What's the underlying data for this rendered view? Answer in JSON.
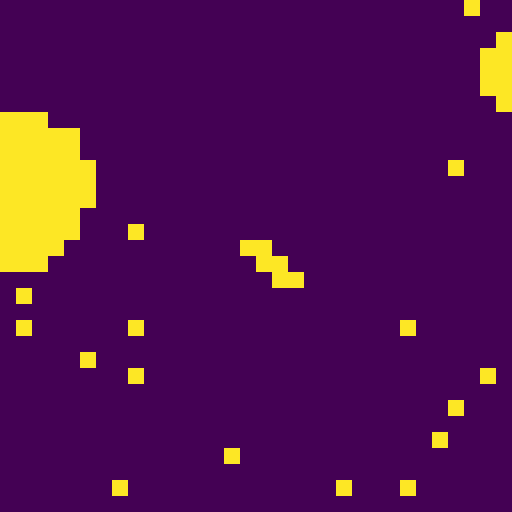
{
  "chart_data": {
    "type": "heatmap",
    "tick_labels": false,
    "colors": [
      "#440154",
      "#fde725"
    ],
    "cells": [
      [
        0,
        0,
        0,
        0,
        0,
        0,
        0,
        0,
        0,
        0,
        0,
        0,
        0,
        0,
        0,
        0,
        0,
        0,
        0,
        0,
        0,
        0,
        0,
        0,
        0,
        0,
        0,
        0,
        0,
        1,
        0,
        0
      ],
      [
        0,
        0,
        0,
        0,
        0,
        0,
        0,
        0,
        0,
        0,
        0,
        0,
        0,
        0,
        0,
        0,
        0,
        0,
        0,
        0,
        0,
        0,
        0,
        0,
        0,
        0,
        0,
        0,
        0,
        0,
        0,
        0
      ],
      [
        0,
        0,
        0,
        0,
        0,
        0,
        0,
        0,
        0,
        0,
        0,
        0,
        0,
        0,
        0,
        0,
        0,
        0,
        0,
        0,
        0,
        0,
        0,
        0,
        0,
        0,
        0,
        0,
        0,
        0,
        0,
        1
      ],
      [
        0,
        0,
        0,
        0,
        0,
        0,
        0,
        0,
        0,
        0,
        0,
        0,
        0,
        0,
        0,
        0,
        0,
        0,
        0,
        0,
        0,
        0,
        0,
        0,
        0,
        0,
        0,
        0,
        0,
        0,
        1,
        1
      ],
      [
        0,
        0,
        0,
        0,
        0,
        0,
        0,
        0,
        0,
        0,
        0,
        0,
        0,
        0,
        0,
        0,
        0,
        0,
        0,
        0,
        0,
        0,
        0,
        0,
        0,
        0,
        0,
        0,
        0,
        0,
        1,
        1
      ],
      [
        0,
        0,
        0,
        0,
        0,
        0,
        0,
        0,
        0,
        0,
        0,
        0,
        0,
        0,
        0,
        0,
        0,
        0,
        0,
        0,
        0,
        0,
        0,
        0,
        0,
        0,
        0,
        0,
        0,
        0,
        1,
        1
      ],
      [
        0,
        0,
        0,
        0,
        0,
        0,
        0,
        0,
        0,
        0,
        0,
        0,
        0,
        0,
        0,
        0,
        0,
        0,
        0,
        0,
        0,
        0,
        0,
        0,
        0,
        0,
        0,
        0,
        0,
        0,
        0,
        1
      ],
      [
        1,
        1,
        1,
        0,
        0,
        0,
        0,
        0,
        0,
        0,
        0,
        0,
        0,
        0,
        0,
        0,
        0,
        0,
        0,
        0,
        0,
        0,
        0,
        0,
        0,
        0,
        0,
        0,
        0,
        0,
        0,
        0
      ],
      [
        1,
        1,
        1,
        1,
        1,
        0,
        0,
        0,
        0,
        0,
        0,
        0,
        0,
        0,
        0,
        0,
        0,
        0,
        0,
        0,
        0,
        0,
        0,
        0,
        0,
        0,
        0,
        0,
        0,
        0,
        0,
        0
      ],
      [
        1,
        1,
        1,
        1,
        1,
        0,
        0,
        0,
        0,
        0,
        0,
        0,
        0,
        0,
        0,
        0,
        0,
        0,
        0,
        0,
        0,
        0,
        0,
        0,
        0,
        0,
        0,
        0,
        0,
        0,
        0,
        0
      ],
      [
        1,
        1,
        1,
        1,
        1,
        1,
        0,
        0,
        0,
        0,
        0,
        0,
        0,
        0,
        0,
        0,
        0,
        0,
        0,
        0,
        0,
        0,
        0,
        0,
        0,
        0,
        0,
        0,
        1,
        0,
        0,
        0
      ],
      [
        1,
        1,
        1,
        1,
        1,
        1,
        0,
        0,
        0,
        0,
        0,
        0,
        0,
        0,
        0,
        0,
        0,
        0,
        0,
        0,
        0,
        0,
        0,
        0,
        0,
        0,
        0,
        0,
        0,
        0,
        0,
        0
      ],
      [
        1,
        1,
        1,
        1,
        1,
        1,
        0,
        0,
        0,
        0,
        0,
        0,
        0,
        0,
        0,
        0,
        0,
        0,
        0,
        0,
        0,
        0,
        0,
        0,
        0,
        0,
        0,
        0,
        0,
        0,
        0,
        0
      ],
      [
        1,
        1,
        1,
        1,
        1,
        0,
        0,
        0,
        0,
        0,
        0,
        0,
        0,
        0,
        0,
        0,
        0,
        0,
        0,
        0,
        0,
        0,
        0,
        0,
        0,
        0,
        0,
        0,
        0,
        0,
        0,
        0
      ],
      [
        1,
        1,
        1,
        1,
        1,
        0,
        0,
        0,
        1,
        0,
        0,
        0,
        0,
        0,
        0,
        0,
        0,
        0,
        0,
        0,
        0,
        0,
        0,
        0,
        0,
        0,
        0,
        0,
        0,
        0,
        0,
        0
      ],
      [
        1,
        1,
        1,
        1,
        0,
        0,
        0,
        0,
        0,
        0,
        0,
        0,
        0,
        0,
        0,
        1,
        1,
        0,
        0,
        0,
        0,
        0,
        0,
        0,
        0,
        0,
        0,
        0,
        0,
        0,
        0,
        0
      ],
      [
        1,
        1,
        1,
        0,
        0,
        0,
        0,
        0,
        0,
        0,
        0,
        0,
        0,
        0,
        0,
        0,
        1,
        1,
        0,
        0,
        0,
        0,
        0,
        0,
        0,
        0,
        0,
        0,
        0,
        0,
        0,
        0
      ],
      [
        0,
        0,
        0,
        0,
        0,
        0,
        0,
        0,
        0,
        0,
        0,
        0,
        0,
        0,
        0,
        0,
        0,
        1,
        1,
        0,
        0,
        0,
        0,
        0,
        0,
        0,
        0,
        0,
        0,
        0,
        0,
        0
      ],
      [
        0,
        1,
        0,
        0,
        0,
        0,
        0,
        0,
        0,
        0,
        0,
        0,
        0,
        0,
        0,
        0,
        0,
        0,
        0,
        0,
        0,
        0,
        0,
        0,
        0,
        0,
        0,
        0,
        0,
        0,
        0,
        0
      ],
      [
        0,
        0,
        0,
        0,
        0,
        0,
        0,
        0,
        0,
        0,
        0,
        0,
        0,
        0,
        0,
        0,
        0,
        0,
        0,
        0,
        0,
        0,
        0,
        0,
        0,
        0,
        0,
        0,
        0,
        0,
        0,
        0
      ],
      [
        0,
        1,
        0,
        0,
        0,
        0,
        0,
        0,
        1,
        0,
        0,
        0,
        0,
        0,
        0,
        0,
        0,
        0,
        0,
        0,
        0,
        0,
        0,
        0,
        0,
        1,
        0,
        0,
        0,
        0,
        0,
        0
      ],
      [
        0,
        0,
        0,
        0,
        0,
        0,
        0,
        0,
        0,
        0,
        0,
        0,
        0,
        0,
        0,
        0,
        0,
        0,
        0,
        0,
        0,
        0,
        0,
        0,
        0,
        0,
        0,
        0,
        0,
        0,
        0,
        0
      ],
      [
        0,
        0,
        0,
        0,
        0,
        1,
        0,
        0,
        0,
        0,
        0,
        0,
        0,
        0,
        0,
        0,
        0,
        0,
        0,
        0,
        0,
        0,
        0,
        0,
        0,
        0,
        0,
        0,
        0,
        0,
        0,
        0
      ],
      [
        0,
        0,
        0,
        0,
        0,
        0,
        0,
        0,
        1,
        0,
        0,
        0,
        0,
        0,
        0,
        0,
        0,
        0,
        0,
        0,
        0,
        0,
        0,
        0,
        0,
        0,
        0,
        0,
        0,
        0,
        1,
        0
      ],
      [
        0,
        0,
        0,
        0,
        0,
        0,
        0,
        0,
        0,
        0,
        0,
        0,
        0,
        0,
        0,
        0,
        0,
        0,
        0,
        0,
        0,
        0,
        0,
        0,
        0,
        0,
        0,
        0,
        0,
        0,
        0,
        0
      ],
      [
        0,
        0,
        0,
        0,
        0,
        0,
        0,
        0,
        0,
        0,
        0,
        0,
        0,
        0,
        0,
        0,
        0,
        0,
        0,
        0,
        0,
        0,
        0,
        0,
        0,
        0,
        0,
        0,
        1,
        0,
        0,
        0
      ],
      [
        0,
        0,
        0,
        0,
        0,
        0,
        0,
        0,
        0,
        0,
        0,
        0,
        0,
        0,
        0,
        0,
        0,
        0,
        0,
        0,
        0,
        0,
        0,
        0,
        0,
        0,
        0,
        0,
        0,
        0,
        0,
        0
      ],
      [
        0,
        0,
        0,
        0,
        0,
        0,
        0,
        0,
        0,
        0,
        0,
        0,
        0,
        0,
        0,
        0,
        0,
        0,
        0,
        0,
        0,
        0,
        0,
        0,
        0,
        0,
        0,
        1,
        0,
        0,
        0,
        0
      ],
      [
        0,
        0,
        0,
        0,
        0,
        0,
        0,
        0,
        0,
        0,
        0,
        0,
        0,
        0,
        1,
        0,
        0,
        0,
        0,
        0,
        0,
        0,
        0,
        0,
        0,
        0,
        0,
        0,
        0,
        0,
        0,
        0
      ],
      [
        0,
        0,
        0,
        0,
        0,
        0,
        0,
        0,
        0,
        0,
        0,
        0,
        0,
        0,
        0,
        0,
        0,
        0,
        0,
        0,
        0,
        0,
        0,
        0,
        0,
        0,
        0,
        0,
        0,
        0,
        0,
        0
      ],
      [
        0,
        0,
        0,
        0,
        0,
        0,
        0,
        1,
        0,
        0,
        0,
        0,
        0,
        0,
        0,
        0,
        0,
        0,
        0,
        0,
        0,
        1,
        0,
        0,
        0,
        1,
        0,
        0,
        0,
        0,
        0,
        0
      ],
      [
        0,
        0,
        0,
        0,
        0,
        0,
        0,
        0,
        0,
        0,
        0,
        0,
        0,
        0,
        0,
        0,
        0,
        0,
        0,
        0,
        0,
        0,
        0,
        0,
        0,
        0,
        0,
        0,
        0,
        0,
        0,
        0
      ]
    ]
  }
}
